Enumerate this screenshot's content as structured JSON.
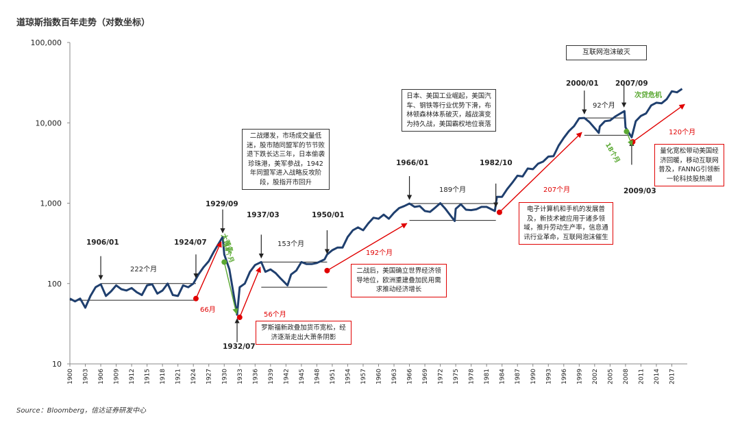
{
  "title": "道琼斯指数百年走势（对数坐标）",
  "source": "Source：Bloomberg，信达证券研发中心",
  "colors": {
    "series": "#1f3f6e",
    "red": "#e00000",
    "green": "#5aa832",
    "level": "#222222"
  },
  "chart_data": {
    "type": "line",
    "yscale": "log",
    "ylim": [
      10,
      100000
    ],
    "xlim": [
      1900,
      2020
    ],
    "ytick_labels": [
      "10",
      "100",
      "1,000",
      "10,000",
      "100,000"
    ],
    "yticks": [
      10,
      100,
      1000,
      10000,
      100000
    ],
    "xtick_labels": [
      "1900",
      "1903",
      "1906",
      "1909",
      "1912",
      "1915",
      "1918",
      "1921",
      "1924",
      "1927",
      "1930",
      "1933",
      "1936",
      "1939",
      "1942",
      "1945",
      "1948",
      "1951",
      "1954",
      "1957",
      "1960",
      "1963",
      "1966",
      "1969",
      "1972",
      "1975",
      "1978",
      "1981",
      "1984",
      "1987",
      "1990",
      "1993",
      "1996",
      "1999",
      "2002",
      "2005",
      "2008",
      "2011",
      "2014",
      "2017"
    ],
    "series": [
      {
        "x": [
          1900,
          1901,
          1902,
          1903,
          1904,
          1905,
          1906,
          1907,
          1908,
          1909,
          1910,
          1911,
          1912,
          1913,
          1914,
          1915,
          1916,
          1917,
          1918,
          1919,
          1920,
          1921,
          1922,
          1923,
          1924,
          1925,
          1926,
          1927,
          1928,
          1929.7,
          1930,
          1931,
          1932.5,
          1933,
          1934,
          1935,
          1936,
          1937.2,
          1938,
          1939,
          1940,
          1941,
          1942.3,
          1943,
          1944,
          1945,
          1946,
          1947,
          1948,
          1949.5,
          1950,
          1951,
          1952,
          1953,
          1954,
          1955,
          1956,
          1957,
          1958,
          1959,
          1960,
          1961,
          1962,
          1963,
          1964,
          1965,
          1966,
          1967,
          1968,
          1969,
          1970,
          1971,
          1972,
          1973,
          1974.8,
          1975,
          1976,
          1977,
          1978,
          1979,
          1980,
          1981,
          1982.6,
          1983,
          1984,
          1985,
          1986,
          1987,
          1988,
          1989,
          1990,
          1991,
          1992,
          1993,
          1994,
          1995,
          1996,
          1997,
          1998,
          1999,
          2000,
          2001,
          2002.8,
          2003,
          2004,
          2005,
          2006,
          2007.8,
          2008,
          2009.2,
          2010,
          2011,
          2012,
          2013,
          2014,
          2015,
          2016,
          2017,
          2018,
          2019
        ],
        "y": [
          65,
          60,
          65,
          50,
          70,
          90,
          98,
          70,
          80,
          95,
          85,
          82,
          88,
          78,
          72,
          95,
          98,
          75,
          82,
          100,
          72,
          70,
          95,
          90,
          100,
          130,
          160,
          190,
          250,
          381,
          230,
          150,
          41,
          90,
          100,
          140,
          170,
          185,
          140,
          150,
          135,
          115,
          95,
          130,
          145,
          185,
          175,
          175,
          180,
          200,
          230,
          260,
          280,
          280,
          380,
          460,
          500,
          460,
          560,
          660,
          640,
          720,
          640,
          760,
          870,
          920,
          990,
          900,
          920,
          800,
          780,
          880,
          1000,
          850,
          600,
          850,
          970,
          830,
          820,
          840,
          900,
          900,
          800,
          1200,
          1200,
          1500,
          1800,
          2200,
          2150,
          2700,
          2650,
          3100,
          3300,
          3800,
          3850,
          5200,
          6500,
          7900,
          9100,
          11400,
          11500,
          10200,
          7500,
          9000,
          10500,
          10700,
          12000,
          14000,
          8800,
          6600,
          10500,
          12200,
          13100,
          16500,
          17800,
          17500,
          19700,
          24700,
          24000,
          26500
        ]
      }
    ],
    "annotations": [
      {
        "label": "1906/01",
        "x": 1906.0,
        "y": 100
      },
      {
        "label": "1924/07",
        "x": 1924.5,
        "y": 105
      },
      {
        "label": "1929/09",
        "x": 1929.7,
        "y": 381
      },
      {
        "label": "1932/07",
        "x": 1932.5,
        "y": 41
      },
      {
        "label": "1937/03",
        "x": 1937.2,
        "y": 185
      },
      {
        "label": "1950/01",
        "x": 1950.0,
        "y": 210
      },
      {
        "label": "1966/01",
        "x": 1966.0,
        "y": 990
      },
      {
        "label": "1982/10",
        "x": 1982.8,
        "y": 800
      },
      {
        "label": "2000/01",
        "x": 2000.0,
        "y": 11500
      },
      {
        "label": "2007/09",
        "x": 2007.7,
        "y": 14000
      },
      {
        "label": "2009/03",
        "x": 2009.2,
        "y": 6600
      }
    ],
    "durations": [
      {
        "text": "222个月",
        "color": "level"
      },
      {
        "text": "66月",
        "color": "red"
      },
      {
        "text": "大萧条",
        "color": "green"
      },
      {
        "text": "34个月",
        "color": "green"
      },
      {
        "text": "56个月",
        "color": "red"
      },
      {
        "text": "153个月",
        "color": "level"
      },
      {
        "text": "192个月",
        "color": "red"
      },
      {
        "text": "189个月",
        "color": "level"
      },
      {
        "text": "207个月",
        "color": "red"
      },
      {
        "text": "92个月",
        "color": "level"
      },
      {
        "text": "18个月",
        "color": "green"
      },
      {
        "text": "次贷危机",
        "color": "green"
      },
      {
        "text": "120个月",
        "color": "red"
      }
    ],
    "notes": [
      {
        "text": "二战爆发，市场成交量低迷，股市随同盟军的节节败退下跌长达三年，日本偷袭珍珠港，美军参战，1942年同盟军进入战略反攻阶段，股指开市回升",
        "style": "black"
      },
      {
        "text": "日本、美国工业崛起，美国汽车、钢铁等行业优势下滑，布林顿森林体系破灭，越战演变为持久战，美国霸权地位衰落",
        "style": "black"
      },
      {
        "text": "互联网泡沫破灭",
        "style": "black"
      },
      {
        "text": "罗斯福新政叠加货币宽松，经济逐渐走出大萧条阴影",
        "style": "red"
      },
      {
        "text": "二战后，美国确立世界经济领导地位，欧洲重建叠加民用需求推动经济增长",
        "style": "red"
      },
      {
        "text": "电子计算机和手机的发展普及，新技术被应用于诸多领域，推升劳动生产率，信息通讯行业革命，互联网泡沫催生",
        "style": "red"
      },
      {
        "text": "量化宽松带动美国经济回暖，移动互联网普及，FANNG引领新一轮科技股热潮",
        "style": "red"
      }
    ]
  }
}
